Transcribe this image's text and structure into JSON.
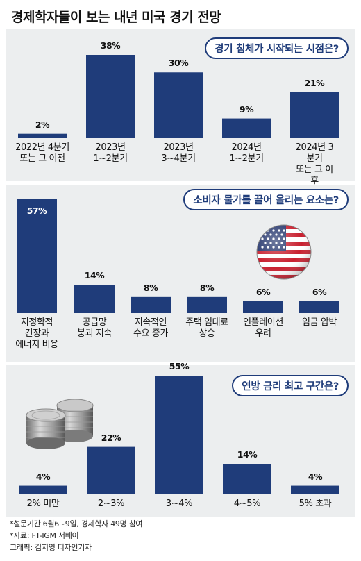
{
  "title": "경제학자들이 보는 내년 미국 경기 전망",
  "colors": {
    "bar": "#1f3c7a",
    "panel": "#eceeef",
    "pill_border": "#1f3c7a"
  },
  "chart_data": [
    {
      "type": "bar",
      "title": "경기 침체가 시작되는 시점은?",
      "unit": "%",
      "categories": [
        "2022년 4분기\n또는 그 이전",
        "2023년\n1~2분기",
        "2023년\n3~4분기",
        "2024년\n1~2분기",
        "2024년 3분기\n또는 그 이후"
      ],
      "values": [
        2,
        38,
        30,
        9,
        21
      ],
      "value_labels": [
        "2%",
        "38%",
        "30%",
        "9%",
        "21%"
      ],
      "ylim": [
        0,
        38
      ]
    },
    {
      "type": "bar",
      "title": "소비자 물가를 끌어 올리는 요소는?",
      "unit": "%",
      "categories": [
        "지정학적\n긴장과\n에너지 비용",
        "공급망\n붕괴 지속",
        "지속적인\n수요 증가",
        "주택 임대료\n상승",
        "인플레이션\n우려",
        "임금 압박"
      ],
      "values": [
        57,
        14,
        8,
        8,
        6,
        6
      ],
      "value_labels": [
        "57%",
        "14%",
        "8%",
        "8%",
        "6%",
        "6%"
      ],
      "ylim": [
        0,
        57
      ],
      "decoration": "us-flag-icon"
    },
    {
      "type": "bar",
      "title": "연방 금리 최고 구간은?",
      "unit": "%",
      "categories": [
        "2% 미만",
        "2~3%",
        "3~4%",
        "4~5%",
        "5% 초과"
      ],
      "values": [
        4,
        22,
        55,
        14,
        4
      ],
      "value_labels": [
        "4%",
        "22%",
        "55%",
        "14%",
        "4%"
      ],
      "ylim": [
        0,
        55
      ],
      "decoration": "coins-icon"
    }
  ],
  "notes": {
    "survey": "*설문기간 6월6~9일, 경제학자 49명 참여",
    "source": "*자료: FT-IGM 서베이",
    "credit": "그래픽: 김지영 디자인기자"
  }
}
